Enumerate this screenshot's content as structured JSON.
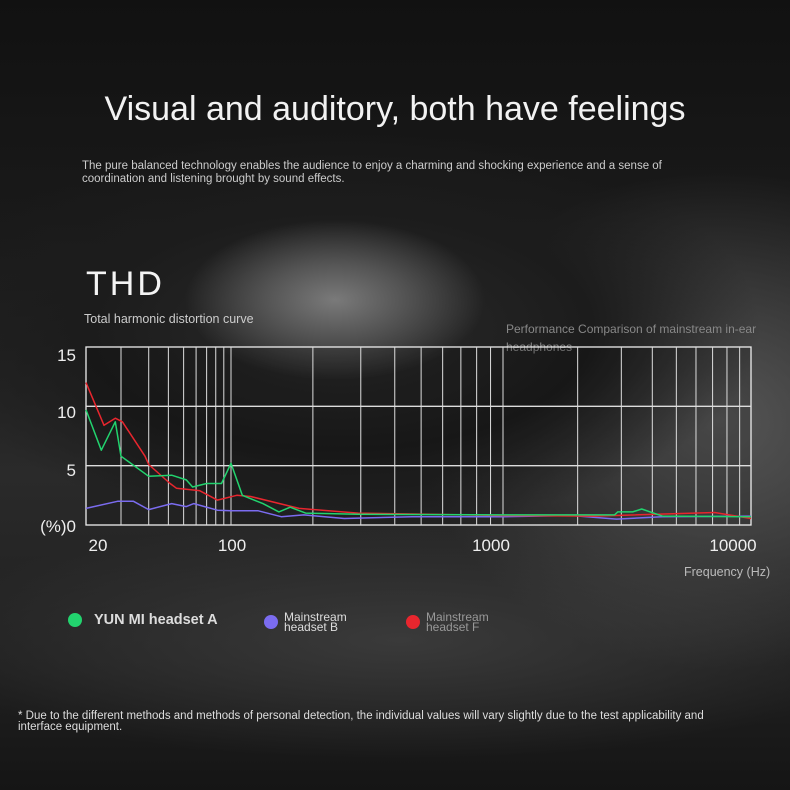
{
  "header": {
    "title": "Visual and auditory, both have feelings",
    "subtitle": "The pure balanced technology enables the audience to enjoy a charming and shocking experience and a sense of coordination and listening brought by sound effects."
  },
  "section": {
    "title": "THD",
    "subtitle": "Total harmonic distortion curve",
    "note": "Performance Comparison of mainstream in-ear headphones"
  },
  "footnote": "* Due to the different methods and methods of personal detection, the individual values will vary slightly due to the test applicability and interface equipment.",
  "chart_data": {
    "type": "line",
    "title": "THD",
    "xlabel": "Frequency (Hz)",
    "ylabel": "(%)",
    "x_scale": "log",
    "xlim": [
      12,
      10000
    ],
    "ylim": [
      0,
      15
    ],
    "x_ticks": [
      {
        "value": 20,
        "label": "20"
      },
      {
        "value": 100,
        "label": "100"
      },
      {
        "value": 1000,
        "label": "1000"
      },
      {
        "value": 10000,
        "label": "10000"
      }
    ],
    "y_ticks": [
      {
        "value": 0,
        "label": "(%)0"
      },
      {
        "value": 5,
        "label": "5"
      },
      {
        "value": 10,
        "label": "10"
      },
      {
        "value": 15,
        "label": "15"
      }
    ],
    "grid": true,
    "legend": "bottom",
    "series": [
      {
        "name": "YUN MI headset A",
        "color": "#22d36e",
        "points": [
          [
            12,
            9.7
          ],
          [
            15,
            6.3
          ],
          [
            18.4,
            8.7
          ],
          [
            20,
            5.8
          ],
          [
            30,
            4.1
          ],
          [
            42,
            4.2
          ],
          [
            52,
            3.8
          ],
          [
            57,
            3.2
          ],
          [
            70,
            3.5
          ],
          [
            87,
            3.5
          ],
          [
            100,
            5.2
          ],
          [
            110,
            2.5
          ],
          [
            131,
            1.8
          ],
          [
            150,
            1.1
          ],
          [
            165,
            1.5
          ],
          [
            188,
            1.0
          ],
          [
            293,
            0.9
          ],
          [
            1000,
            0.85
          ],
          [
            2815,
            0.85
          ],
          [
            2900,
            1.1
          ],
          [
            3335,
            1.1
          ],
          [
            3625,
            1.35
          ],
          [
            4390,
            0.75
          ],
          [
            10000,
            0.7
          ]
        ]
      },
      {
        "name": "Mainstream headset B",
        "color": "#7b6cf0",
        "points": [
          [
            12,
            1.4
          ],
          [
            19,
            2.0
          ],
          [
            24,
            2.0
          ],
          [
            30,
            1.3
          ],
          [
            42,
            1.8
          ],
          [
            52,
            1.55
          ],
          [
            58,
            1.8
          ],
          [
            82,
            1.25
          ],
          [
            100,
            1.2
          ],
          [
            126,
            1.2
          ],
          [
            153,
            0.7
          ],
          [
            185,
            0.85
          ],
          [
            261,
            0.55
          ],
          [
            464,
            0.7
          ],
          [
            1000,
            0.7
          ],
          [
            1885,
            0.8
          ],
          [
            2870,
            0.5
          ],
          [
            4390,
            0.7
          ],
          [
            10000,
            0.75
          ]
        ]
      },
      {
        "name": "Mainstream headset F",
        "color": "#e8262e",
        "points": [
          [
            12,
            12
          ],
          [
            15.6,
            8.4
          ],
          [
            18.4,
            9.0
          ],
          [
            20.4,
            8.7
          ],
          [
            28.4,
            5.8
          ],
          [
            30,
            5.1
          ],
          [
            41,
            3.5
          ],
          [
            45,
            3.1
          ],
          [
            63,
            2.9
          ],
          [
            82,
            2.1
          ],
          [
            105,
            2.5
          ],
          [
            118,
            2.4
          ],
          [
            178,
            1.4
          ],
          [
            293,
            1.0
          ],
          [
            1000,
            0.8
          ],
          [
            2330,
            0.75
          ],
          [
            7130,
            1.05
          ],
          [
            10000,
            0.55
          ]
        ]
      }
    ]
  }
}
